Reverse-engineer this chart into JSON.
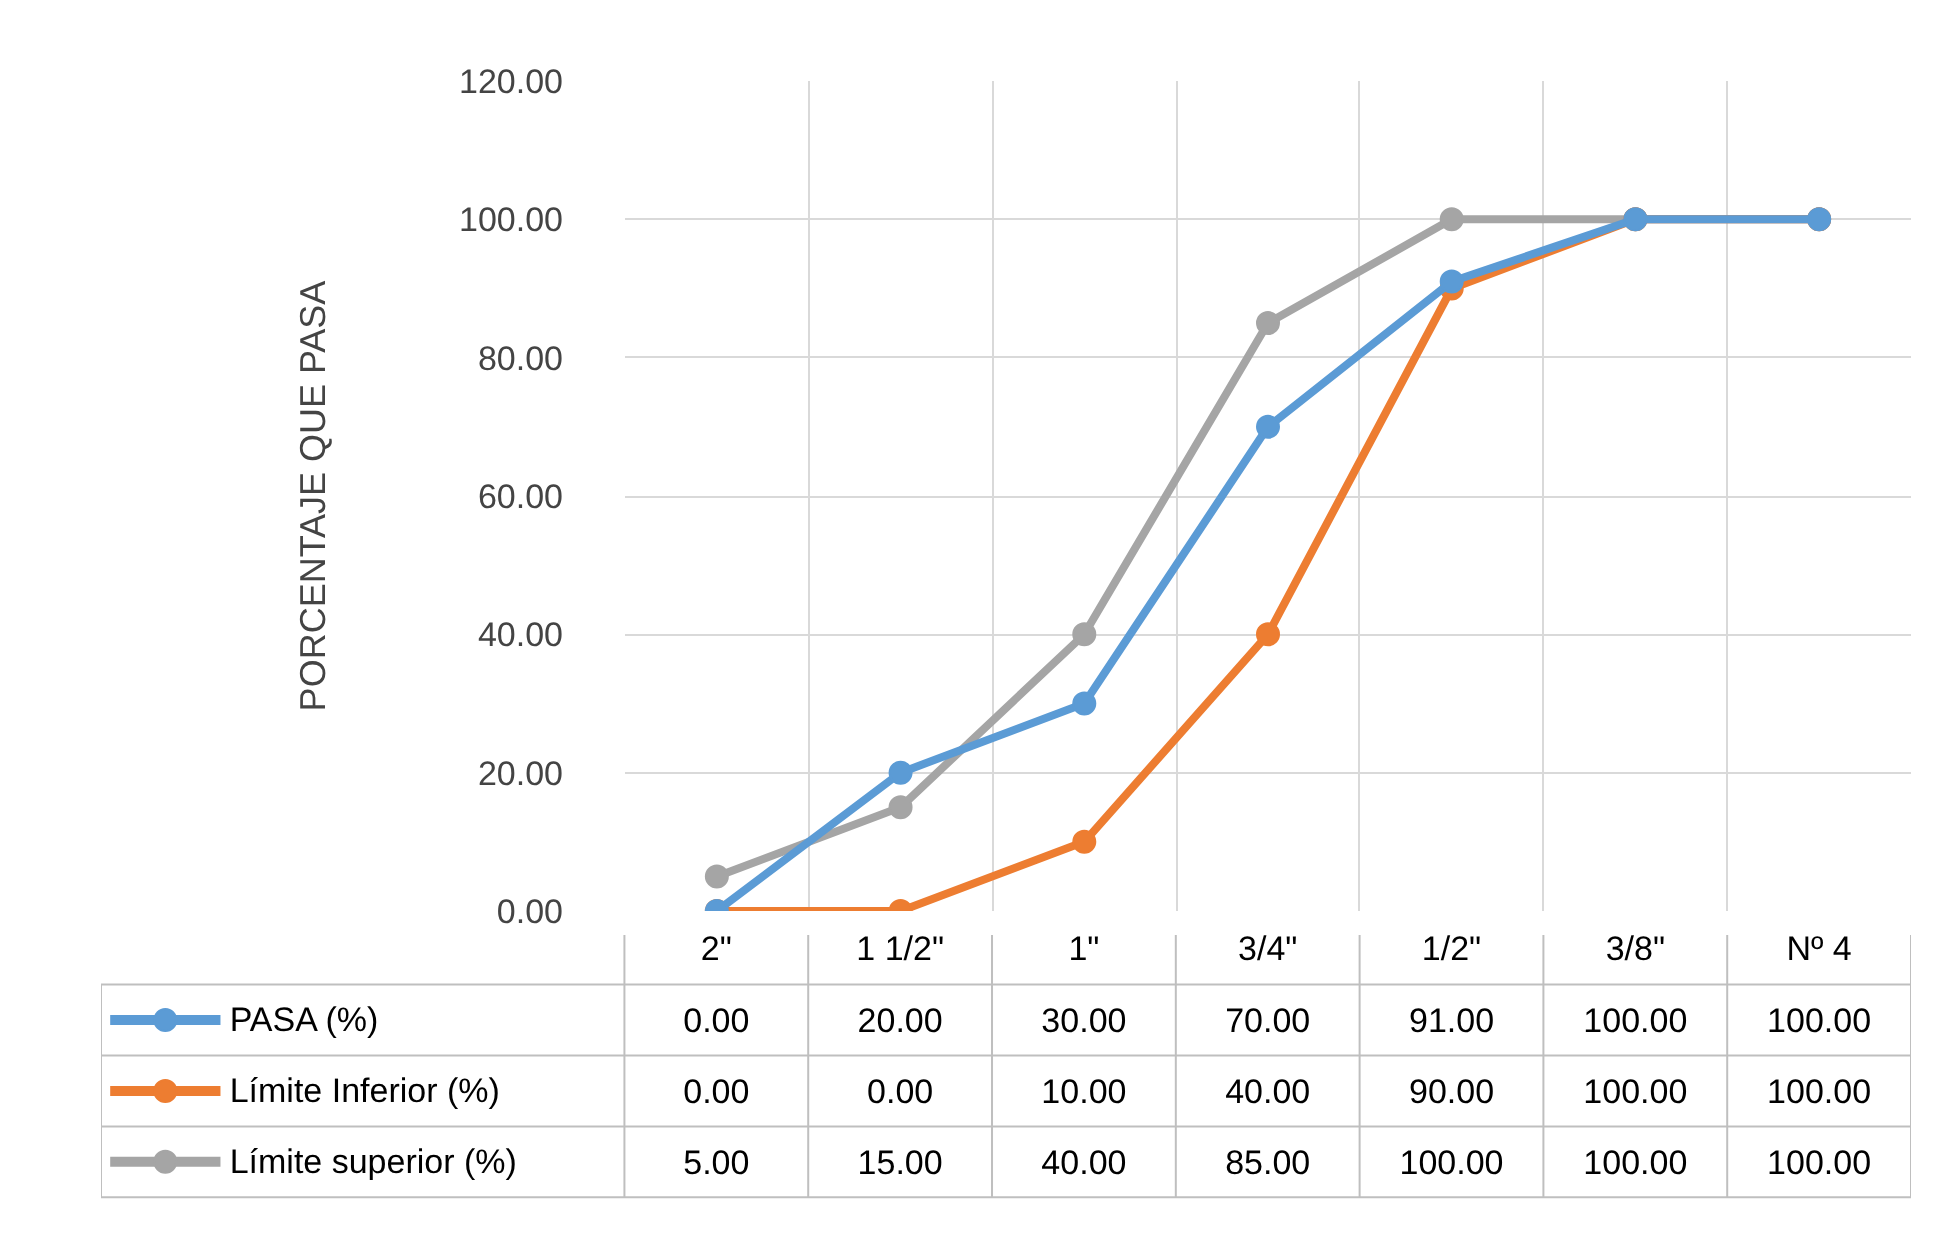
{
  "chart_data": {
    "type": "line",
    "ylabel": "PORCENTAJE QUE PASA",
    "categories": [
      "2\"",
      "1 1/2\"",
      "1\"",
      "3/4\"",
      "1/2\"",
      "3/8\"",
      "Nº 4"
    ],
    "series": [
      {
        "name": "PASA (%)",
        "color": "#5b9bd5",
        "values": [
          0,
          20,
          30,
          70,
          91,
          100,
          100
        ],
        "value_labels": [
          "0.00",
          "20.00",
          "30.00",
          "70.00",
          "91.00",
          "100.00",
          "100.00"
        ]
      },
      {
        "name": "Límite Inferior (%)",
        "color": "#ed7d31",
        "values": [
          0,
          0,
          10,
          40,
          90,
          100,
          100
        ],
        "value_labels": [
          "0.00",
          "0.00",
          "10.00",
          "40.00",
          "90.00",
          "100.00",
          "100.00"
        ]
      },
      {
        "name": "Límite superior (%)",
        "color": "#a5a5a5",
        "values": [
          5,
          15,
          40,
          85,
          100,
          100,
          100
        ],
        "value_labels": [
          "5.00",
          "15.00",
          "40.00",
          "85.00",
          "100.00",
          "100.00",
          "100.00"
        ]
      }
    ],
    "ylim": [
      0,
      120
    ],
    "yticks": [
      {
        "value": 0,
        "label": "0.00"
      },
      {
        "value": 20,
        "label": "20.00"
      },
      {
        "value": 40,
        "label": "40.00"
      },
      {
        "value": 60,
        "label": "60.00"
      },
      {
        "value": 80,
        "label": "80.00"
      },
      {
        "value": 100,
        "label": "100.00"
      },
      {
        "value": 120,
        "label": "120.00"
      }
    ],
    "grid": true,
    "legend": "bottom",
    "marker": "circle",
    "line_style": "solid"
  }
}
